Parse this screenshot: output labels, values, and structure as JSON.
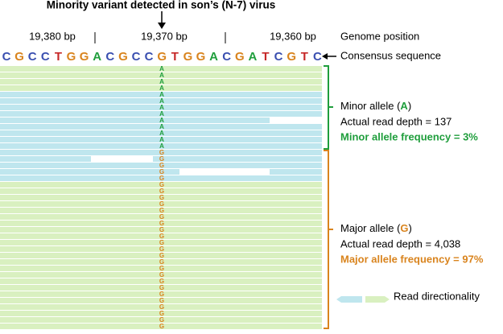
{
  "title": "Minority variant detected in son’s (N-7) virus",
  "positions": [
    "19,380 bp",
    "19,370 bp",
    "19,360 bp"
  ],
  "position_label": "Genome position",
  "consensus": {
    "label": "Consensus sequence",
    "bases": [
      "C",
      "G",
      "C",
      "C",
      "T",
      "G",
      "G",
      "A",
      "C",
      "G",
      "C",
      "C",
      "G",
      "T",
      "G",
      "G",
      "A",
      "C",
      "G",
      "A",
      "T",
      "C",
      "G",
      "T",
      "C"
    ]
  },
  "base_colors": {
    "A": "#1f9e3c",
    "C": "#3a4fb0",
    "G": "#d9841e",
    "T": "#c62828"
  },
  "reads": [
    {
      "base": "A",
      "color": "#d9f0c0"
    },
    {
      "base": "A",
      "color": "#d9f0c0"
    },
    {
      "base": "A",
      "color": "#d9f0c0"
    },
    {
      "base": "A",
      "color": "#d9f0c0"
    },
    {
      "base": "A",
      "color": "#bfe6ee"
    },
    {
      "base": "A",
      "color": "#bfe6ee"
    },
    {
      "base": "A",
      "color": "#bfe6ee"
    },
    {
      "base": "A",
      "color": "#bfe6ee"
    },
    {
      "base": "A",
      "color": "#bfe6ee"
    },
    {
      "base": "A",
      "color": "#bfe6ee"
    },
    {
      "base": "A",
      "color": "#bfe6ee"
    },
    {
      "base": "A",
      "color": "#bfe6ee"
    },
    {
      "base": "A",
      "color": "#bfe6ee"
    },
    {
      "base": "G",
      "color": "#bfe6ee"
    },
    {
      "base": "G",
      "color": "#bfe6ee"
    },
    {
      "base": "G",
      "color": "#bfe6ee"
    },
    {
      "base": "G",
      "color": "#bfe6ee"
    },
    {
      "base": "G",
      "color": "#bfe6ee"
    },
    {
      "base": "G",
      "color": "#d9f0c0"
    },
    {
      "base": "G",
      "color": "#d9f0c0"
    },
    {
      "base": "G",
      "color": "#d9f0c0"
    },
    {
      "base": "G",
      "color": "#d9f0c0"
    },
    {
      "base": "G",
      "color": "#d9f0c0"
    },
    {
      "base": "G",
      "color": "#d9f0c0"
    },
    {
      "base": "G",
      "color": "#d9f0c0"
    },
    {
      "base": "G",
      "color": "#d9f0c0"
    },
    {
      "base": "G",
      "color": "#d9f0c0"
    },
    {
      "base": "G",
      "color": "#d9f0c0"
    },
    {
      "base": "G",
      "color": "#d9f0c0"
    },
    {
      "base": "G",
      "color": "#d9f0c0"
    },
    {
      "base": "G",
      "color": "#d9f0c0"
    },
    {
      "base": "G",
      "color": "#d9f0c0"
    },
    {
      "base": "G",
      "color": "#d9f0c0"
    },
    {
      "base": "G",
      "color": "#d9f0c0"
    },
    {
      "base": "G",
      "color": "#d9f0c0"
    },
    {
      "base": "G",
      "color": "#d9f0c0"
    },
    {
      "base": "G",
      "color": "#d9f0c0"
    },
    {
      "base": "G",
      "color": "#d9f0c0"
    },
    {
      "base": "G",
      "color": "#d9f0c0"
    },
    {
      "base": "G",
      "color": "#d9f0c0"
    },
    {
      "base": "G",
      "color": "#d9f0c0"
    }
  ],
  "minor": {
    "prefix": "Minor allele (",
    "allele": "A",
    "suffix": ")",
    "depth": "Actual read depth = 137",
    "frequency": "Minor allele frequency = 3%",
    "color": "#1f9e3c"
  },
  "major": {
    "prefix": "Major allele (",
    "allele": "G",
    "suffix": ")",
    "depth": "Actual read depth = 4,038",
    "frequency": "Major allele frequency = 97%",
    "color": "#d9841e"
  },
  "legend": "Read directionality"
}
